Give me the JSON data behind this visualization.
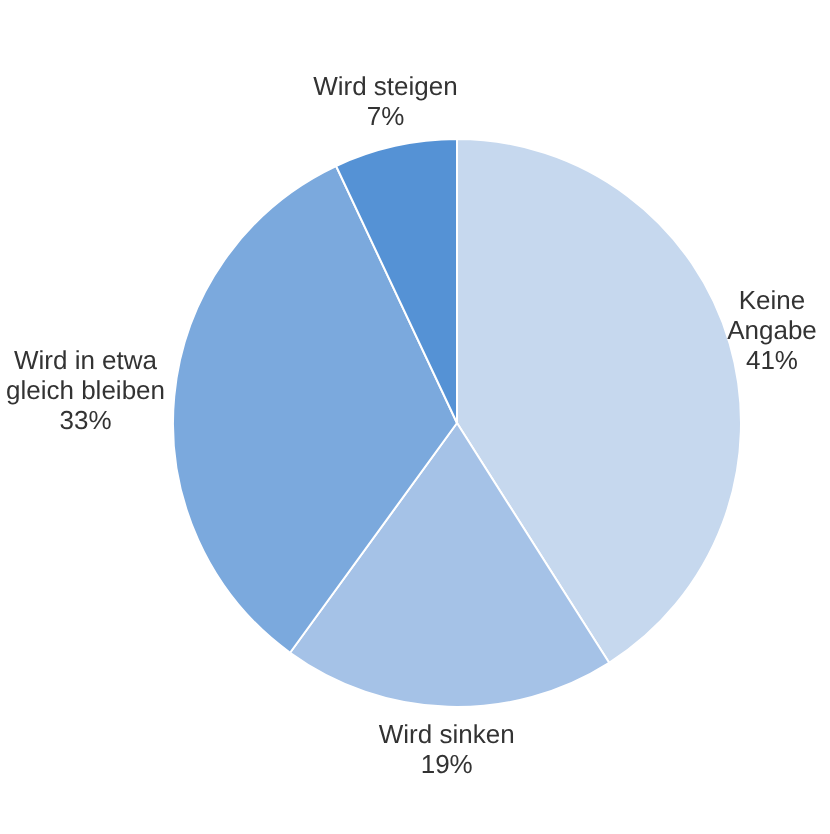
{
  "chart_data": {
    "type": "pie",
    "categories": [
      "Keine Angabe",
      "Wird sinken",
      "Wird in etwa gleich bleiben",
      "Wird steigen"
    ],
    "values": [
      41,
      19,
      33,
      7
    ],
    "colors": [
      "#c6d8ee",
      "#a5c2e7",
      "#7ba9dd",
      "#5592d5"
    ],
    "value_labels": [
      "41%",
      "19%",
      "33%",
      "7%"
    ],
    "legend": false
  }
}
